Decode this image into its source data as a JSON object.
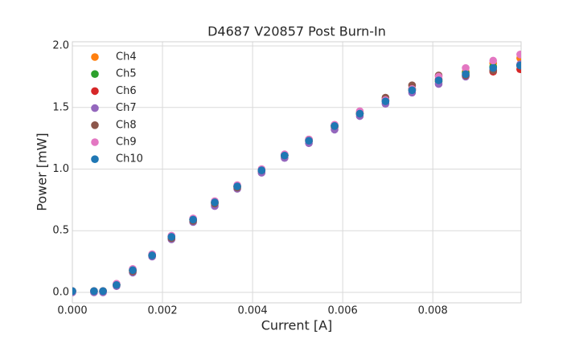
{
  "chart_data": {
    "type": "scatter",
    "title": "D4687 V20857 Post Burn-In",
    "x_label": "Current [A]",
    "y_label": "Power [mW]",
    "grid": true,
    "legend": "upper left",
    "xlim": [
      0,
      0.00996
    ],
    "ylim": [
      -0.085,
      2.033
    ],
    "xticks": [
      {
        "value": 0,
        "label": "0.000"
      },
      0.002,
      0.004,
      0.006,
      0.008
    ],
    "yticks": [
      {
        "value": 0,
        "label": "0.0"
      },
      0.5,
      {
        "value": 1,
        "label": "1.0"
      },
      1.5,
      {
        "value": 2,
        "label": "2.0"
      }
    ],
    "x": [
      0,
      0.00048,
      0.00068,
      0.00098,
      0.00134,
      0.00177,
      0.0022,
      0.00268,
      0.00316,
      0.00366,
      0.0042,
      0.00471,
      0.00525,
      0.00582,
      0.00638,
      0.00695,
      0.00754,
      0.00813,
      0.00873,
      0.00934,
      0.00994
    ],
    "series": [
      {
        "name": "Ch4",
        "color": "#ff7f0e",
        "values": [
          0.01,
          0.01,
          0.01,
          0.06,
          0.18,
          0.3,
          0.45,
          0.59,
          0.73,
          0.86,
          0.99,
          1.11,
          1.23,
          1.35,
          1.46,
          1.56,
          1.65,
          1.72,
          1.79,
          1.86,
          1.9
        ]
      },
      {
        "name": "Ch5",
        "color": "#2ca02c",
        "values": [
          0.01,
          0.01,
          0.01,
          0.06,
          0.18,
          0.3,
          0.45,
          0.59,
          0.73,
          0.86,
          0.99,
          1.11,
          1.23,
          1.35,
          1.45,
          1.56,
          1.65,
          1.71,
          1.78,
          1.83,
          1.84
        ]
      },
      {
        "name": "Ch6",
        "color": "#d62728",
        "values": [
          0.01,
          0.01,
          0.01,
          0.06,
          0.18,
          0.3,
          0.45,
          0.59,
          0.73,
          0.86,
          0.99,
          1.11,
          1.23,
          1.34,
          1.45,
          1.56,
          1.64,
          1.73,
          1.76,
          1.79,
          1.81
        ]
      },
      {
        "name": "Ch7",
        "color": "#9467bd",
        "values": [
          0.0,
          0.0,
          0.0,
          0.05,
          0.16,
          0.29,
          0.43,
          0.57,
          0.7,
          0.84,
          0.97,
          1.09,
          1.21,
          1.32,
          1.43,
          1.53,
          1.62,
          1.69,
          1.75,
          1.8,
          1.85
        ]
      },
      {
        "name": "Ch8",
        "color": "#8c564b",
        "values": [
          0.01,
          0.01,
          0.01,
          0.06,
          0.17,
          0.3,
          0.44,
          0.58,
          0.72,
          0.85,
          0.99,
          1.11,
          1.24,
          1.35,
          1.45,
          1.58,
          1.68,
          1.76,
          1.76,
          1.8,
          1.84
        ]
      },
      {
        "name": "Ch9",
        "color": "#e377c2",
        "values": [
          0.01,
          0.01,
          0.01,
          0.07,
          0.19,
          0.31,
          0.46,
          0.6,
          0.74,
          0.87,
          1.0,
          1.12,
          1.24,
          1.36,
          1.47,
          1.56,
          1.65,
          1.75,
          1.82,
          1.88,
          1.93
        ]
      },
      {
        "name": "Ch10",
        "color": "#1f77b4",
        "values": [
          0.01,
          0.01,
          0.01,
          0.06,
          0.18,
          0.3,
          0.45,
          0.59,
          0.73,
          0.86,
          0.99,
          1.11,
          1.23,
          1.35,
          1.45,
          1.55,
          1.64,
          1.72,
          1.77,
          1.82,
          1.84
        ]
      }
    ]
  }
}
